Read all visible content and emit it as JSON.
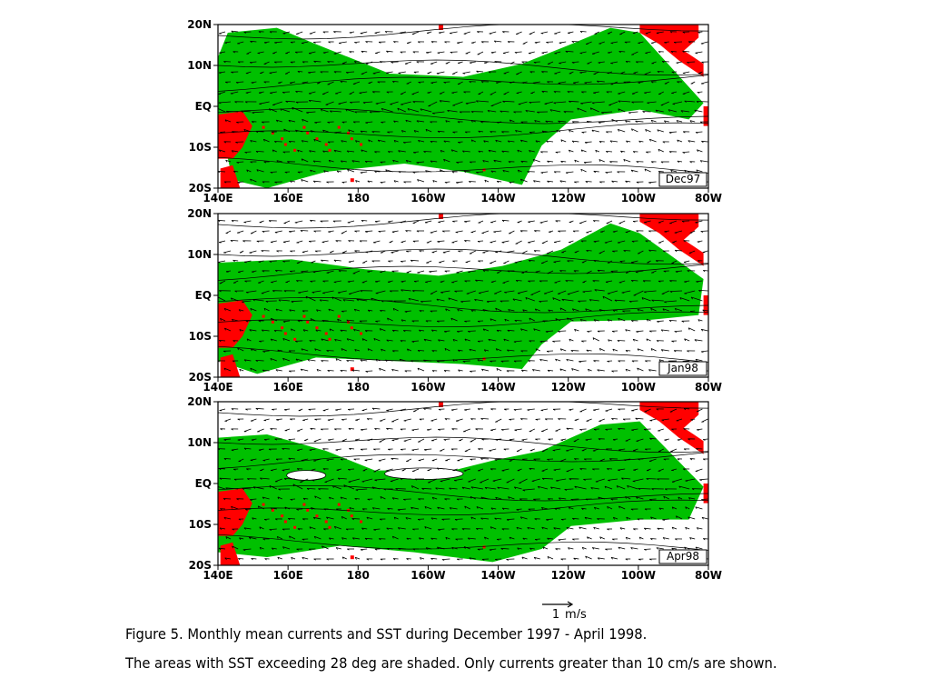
{
  "figure": {
    "caption_line1": "Figure 5. Monthly mean currents and SST during December 1997 - April 1998.",
    "caption_line2": "The areas with SST exceeding 28 deg are shaded. Only currents greater than 10 cm/s are shown.",
    "scale_value": "1",
    "scale_unit": "m/s",
    "colors": {
      "warm_sst": "#00c000",
      "land": "#ff0000",
      "contour": "#000000",
      "vector": "#000000"
    },
    "lon_labels": [
      "140E",
      "160E",
      "180",
      "160W",
      "140W",
      "120W",
      "100W",
      "80W"
    ],
    "lat_labels": [
      "20N",
      "10N",
      "EQ",
      "10S",
      "20S"
    ],
    "panels": [
      {
        "label": "Dec97",
        "shading": "warm_sst",
        "vectors": "ocean_currents"
      },
      {
        "label": "Jan98",
        "shading": "warm_sst",
        "vectors": "ocean_currents"
      },
      {
        "label": "Apr98",
        "shading": "warm_sst",
        "vectors": "ocean_currents"
      }
    ]
  }
}
